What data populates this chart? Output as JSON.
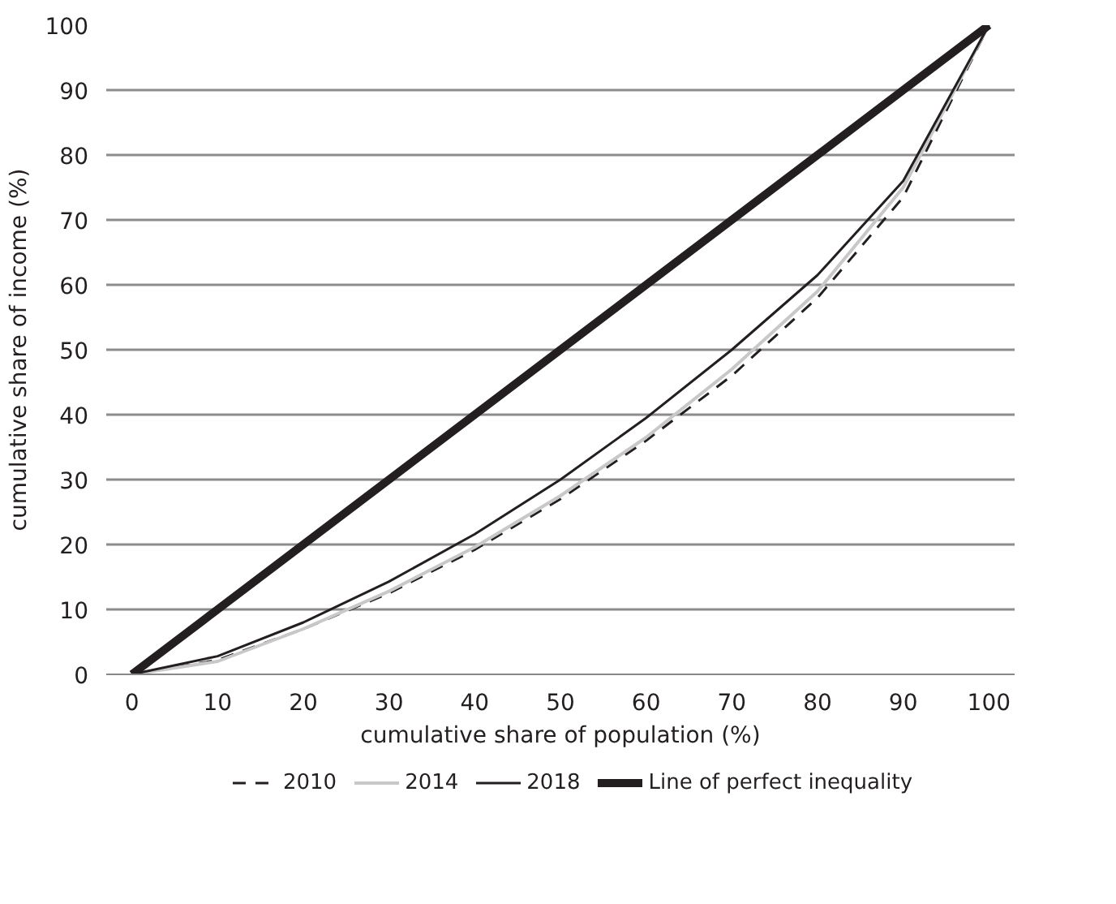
{
  "chart_data": {
    "type": "line",
    "xlabel": "cumulative share of population (%)",
    "ylabel": "cumulative share of income (%)",
    "x": [
      0,
      10,
      20,
      30,
      40,
      50,
      60,
      70,
      80,
      90,
      100
    ],
    "xlim": [
      -3,
      103
    ],
    "ylim": [
      0,
      100
    ],
    "xticks": [
      0,
      10,
      20,
      30,
      40,
      50,
      60,
      70,
      80,
      90,
      100
    ],
    "yticks": [
      0,
      10,
      20,
      30,
      40,
      50,
      60,
      70,
      80,
      90,
      100
    ],
    "grid": "y",
    "legend": "bottom",
    "marker": "none",
    "series": [
      {
        "name": "2010",
        "color": "#231f20",
        "line_style": "dashed",
        "values": [
          0,
          2.2,
          7,
          12.5,
          19.2,
          27,
          36,
          46,
          58,
          73.5,
          100
        ]
      },
      {
        "name": "2014",
        "color": "#c8c8c8",
        "line_style": "solid",
        "values": [
          0,
          2,
          7,
          12.8,
          19.6,
          27.5,
          36.5,
          47,
          59,
          75,
          100
        ]
      },
      {
        "name": "2018",
        "color": "#231f20",
        "line_style": "solid",
        "values": [
          0,
          2.8,
          8,
          14.3,
          21.6,
          30,
          39.5,
          50,
          61.5,
          76,
          100
        ]
      },
      {
        "name": "Line of perfect inequality",
        "color": "#231f20",
        "line_style": "solid",
        "values": [
          0,
          10,
          20,
          30,
          40,
          50,
          60,
          70,
          80,
          90,
          100
        ]
      }
    ]
  }
}
